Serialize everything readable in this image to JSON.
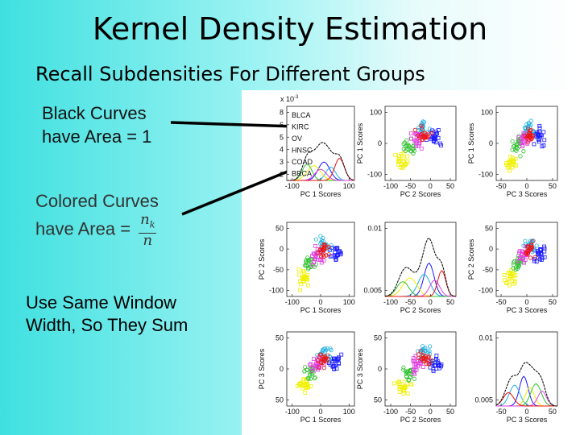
{
  "slide": {
    "title": "Kernel Density Estimation",
    "subtitle": "Recall Subdensities For Different Groups",
    "note1": "Black Curves have Area = 1",
    "note2_text": "Colored Curves have Area =",
    "note2_frac_num": "n",
    "note2_frac_num_sub": "k",
    "note2_frac_den": "n",
    "note3": "Use Same Window Width, So They Sum"
  },
  "figure": {
    "legend": [
      {
        "label": "BLCA",
        "color": "#1a1aff"
      },
      {
        "label": "KIRC",
        "color": "#20b0e0"
      },
      {
        "label": "OV",
        "color": "#f0f000"
      },
      {
        "label": "HNSC",
        "color": "#30c030"
      },
      {
        "label": "COAD",
        "color": "#e040e0"
      },
      {
        "label": "BRCA",
        "color": "#ee1111"
      }
    ],
    "exponent_label": "x 10",
    "exponent_sup": "-3",
    "row1": {
      "p1": {
        "xlabel": "PC 1 Scores",
        "xticks": [
          "-100",
          "0",
          "100"
        ],
        "yticks": [
          "8",
          "6",
          "5",
          "4",
          "3",
          "2"
        ]
      },
      "p2": {
        "xlabel": "PC 2 Scores",
        "ylabel": "PC 1 Scores",
        "xticks": [
          "-100",
          "-50",
          "0",
          "50"
        ],
        "yticks": [
          "100",
          "0",
          "-100"
        ]
      },
      "p3": {
        "xlabel": "PC 3 Scores",
        "ylabel": "PC 1 Scores",
        "xticks": [
          "-50",
          "0",
          "50"
        ],
        "yticks": [
          "100",
          "0",
          "-100"
        ]
      }
    },
    "row2": {
      "p1": {
        "xlabel": "PC 1 Scores",
        "ylabel": "PC 2 Scores",
        "xticks": [
          "-100",
          "0",
          "100"
        ],
        "yticks": [
          "50",
          "0",
          "-50",
          "-100"
        ]
      },
      "p2": {
        "xlabel": "PC 2 Scores",
        "xticks": [
          "-100",
          "-50",
          "0",
          "50"
        ],
        "yticks": [
          "0.01",
          "0.005"
        ]
      },
      "p3": {
        "xlabel": "PC 3 Scores",
        "ylabel": "PC 2 Scores",
        "xticks": [
          "-50",
          "0",
          "50"
        ],
        "yticks": [
          "50",
          "0",
          "-50",
          "-100"
        ]
      }
    },
    "row3": {
      "p1": {
        "xlabel": "PC 1 Scores",
        "ylabel": "PC 3 Scores",
        "xticks": [
          "-100",
          "0",
          "100"
        ],
        "yticks": [
          "50",
          "0",
          "50"
        ]
      },
      "p2": {
        "xlabel": "PC 2 Scores",
        "ylabel": "PC 3 Scores",
        "xticks": [
          "-100",
          "-50",
          "0",
          "50"
        ],
        "yticks": [
          "50",
          "0",
          "50"
        ]
      },
      "p3": {
        "xlabel": "PC 3 Scores",
        "xticks": [
          "-50",
          "0",
          "50"
        ],
        "yticks": [
          "0.01",
          "0.005"
        ]
      }
    }
  }
}
